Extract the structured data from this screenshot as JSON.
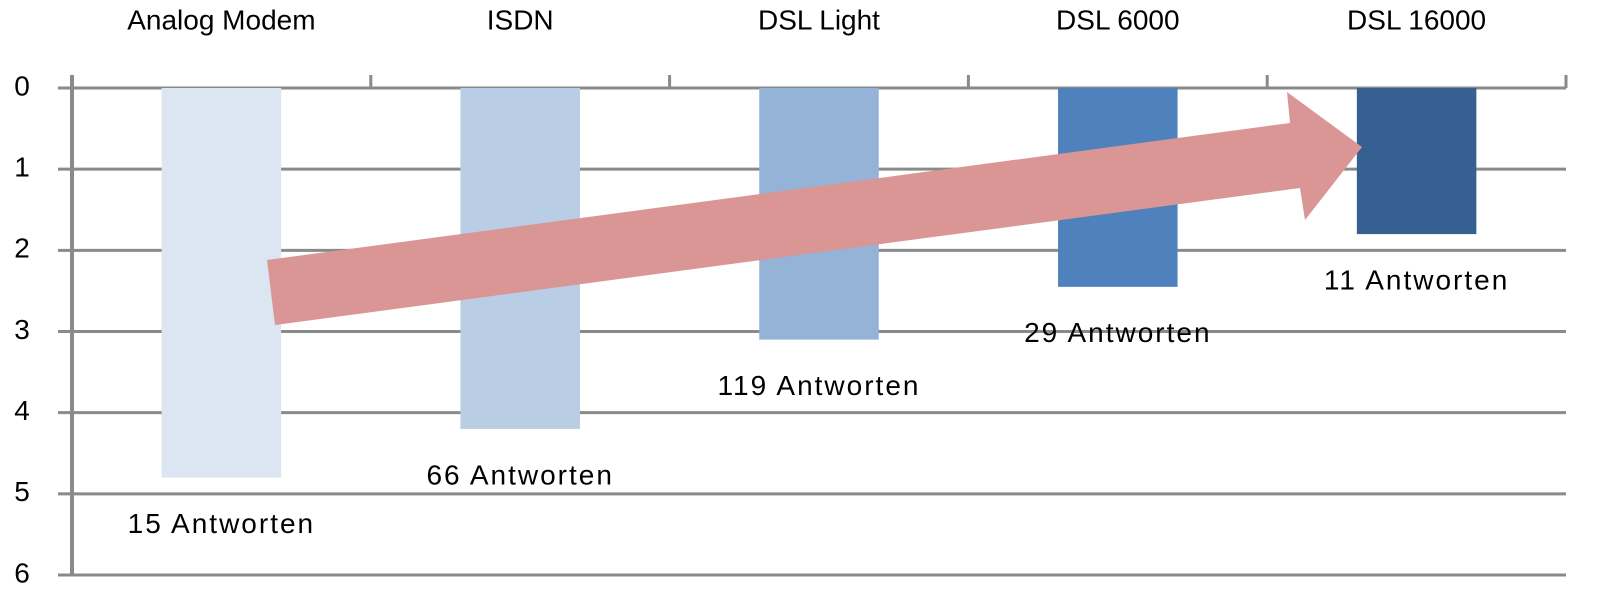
{
  "chart_data": {
    "type": "bar",
    "categories": [
      "Analog Modem",
      "ISDN",
      "DSL Light",
      "DSL 6000",
      "DSL 16000"
    ],
    "values": [
      4.8,
      4.2,
      3.1,
      2.45,
      1.8
    ],
    "colors": [
      "#dce6f2",
      "#b9cde5",
      "#95b3d7",
      "#4f81bd",
      "#376092"
    ],
    "annotations": [
      "15 Antworten",
      "66 Antworten",
      "119 Antworten",
      "29 Antworten",
      "11 Antworten"
    ],
    "ylim": [
      0,
      6
    ],
    "yticks": [
      0,
      1,
      2,
      3,
      4,
      5,
      6
    ],
    "y_inverted": true,
    "x_axis_position": "top",
    "grid": true
  }
}
